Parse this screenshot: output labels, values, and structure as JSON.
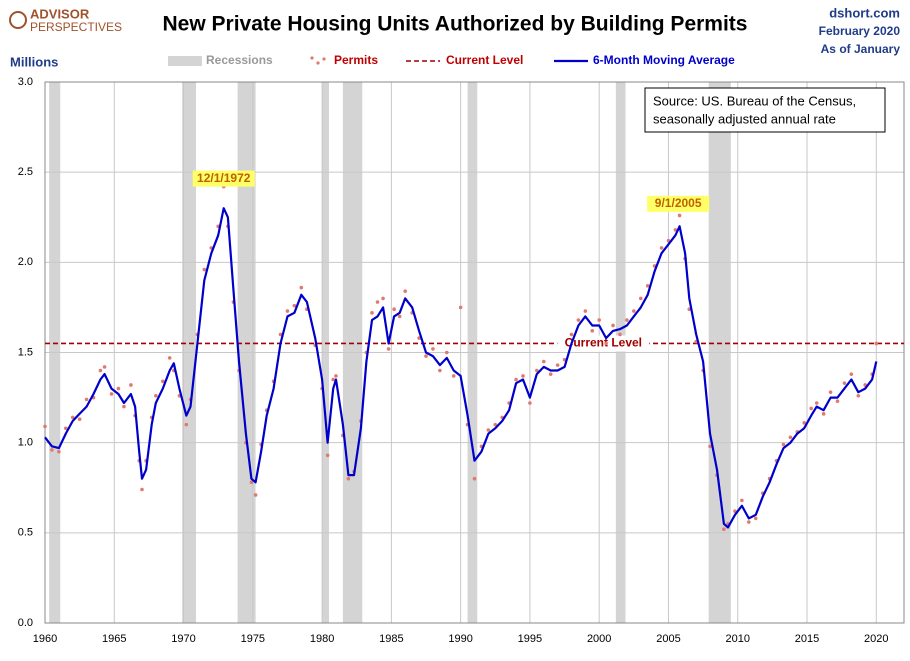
{
  "chart_data": {
    "type": "line",
    "title": "New Private Housing Units Authorized by Building Permits",
    "logo": [
      "ADVISOR",
      "PERSPECTIVES"
    ],
    "site": [
      "dshort.com",
      "February 2020",
      "As of January"
    ],
    "y_label": "Millions",
    "source": [
      "Source: US. Bureau of the Census,",
      "seasonally adjusted annual rate"
    ],
    "xlim": [
      1960,
      2022
    ],
    "xticks": [
      1960,
      1965,
      1970,
      1975,
      1980,
      1985,
      1990,
      1995,
      2000,
      2005,
      2010,
      2015,
      2020
    ],
    "ylim": [
      0,
      3
    ],
    "yticks": [
      {
        "value": 0,
        "label": "0.0"
      },
      0.5,
      {
        "value": 1,
        "label": "1.0"
      },
      1.5,
      {
        "value": 2,
        "label": "2.0"
      },
      2.5,
      {
        "value": 3,
        "label": "3.0"
      }
    ],
    "grid": true,
    "recessions": {
      "name": "Recessions",
      "color": "#d4d4d4",
      "spans": [
        [
          1960.3,
          1961.1
        ],
        [
          1969.9,
          1970.9
        ],
        [
          1973.9,
          1975.2
        ],
        [
          1980.0,
          1980.5
        ],
        [
          1981.5,
          1982.9
        ],
        [
          1990.5,
          1991.2
        ],
        [
          2001.2,
          2001.9
        ],
        [
          2007.9,
          2009.5
        ]
      ]
    },
    "current_level": {
      "name": "Current Level",
      "value": 1.55,
      "color": "#a00000",
      "label": "Current Level"
    },
    "annotations": [
      {
        "text": "12/1/1972",
        "x": 1972.9,
        "y": 2.42
      },
      {
        "text": "9/1/2005",
        "x": 2005.7,
        "y": 2.28
      }
    ],
    "x": [
      1960.0,
      1960.5,
      1961.0,
      1961.5,
      1962.0,
      1962.5,
      1963.0,
      1963.5,
      1964.0,
      1964.3,
      1964.8,
      1965.3,
      1965.7,
      1966.2,
      1966.5,
      1966.8,
      1967.0,
      1967.3,
      1967.7,
      1968.0,
      1968.5,
      1969.0,
      1969.3,
      1969.7,
      1970.2,
      1970.5,
      1971.0,
      1971.5,
      1972.0,
      1972.5,
      1972.9,
      1973.2,
      1973.6,
      1974.0,
      1974.5,
      1974.9,
      1975.2,
      1975.6,
      1976.0,
      1976.5,
      1977.0,
      1977.5,
      1978.0,
      1978.5,
      1978.9,
      1979.5,
      1980.0,
      1980.4,
      1980.8,
      1981.0,
      1981.5,
      1981.9,
      1982.3,
      1982.8,
      1983.2,
      1983.6,
      1984.0,
      1984.4,
      1984.8,
      1985.2,
      1985.6,
      1986.0,
      1986.5,
      1987.0,
      1987.5,
      1988.0,
      1988.5,
      1989.0,
      1989.5,
      1990.0,
      1990.5,
      1991.0,
      1991.5,
      1992.0,
      1992.5,
      1993.0,
      1993.5,
      1994.0,
      1994.5,
      1995.0,
      1995.5,
      1996.0,
      1996.5,
      1997.0,
      1997.5,
      1998.0,
      1998.5,
      1999.0,
      1999.5,
      2000.0,
      2000.5,
      2001.0,
      2001.5,
      2002.0,
      2002.5,
      2003.0,
      2003.5,
      2004.0,
      2004.5,
      2005.0,
      2005.5,
      2005.8,
      2006.2,
      2006.5,
      2007.0,
      2007.5,
      2008.0,
      2008.5,
      2009.0,
      2009.3,
      2009.8,
      2010.3,
      2010.8,
      2011.3,
      2011.8,
      2012.3,
      2012.8,
      2013.3,
      2013.8,
      2014.3,
      2014.8,
      2015.3,
      2015.7,
      2016.2,
      2016.7,
      2017.2,
      2017.7,
      2018.2,
      2018.7,
      2019.2,
      2019.7,
      2020.0
    ],
    "series": [
      {
        "name": "Permits",
        "color": "#e07a6e",
        "style": "dots",
        "values": [
          1.09,
          0.96,
          0.95,
          1.08,
          1.14,
          1.13,
          1.24,
          1.25,
          1.4,
          1.42,
          1.27,
          1.3,
          1.2,
          1.32,
          1.15,
          0.9,
          0.74,
          0.9,
          1.14,
          1.26,
          1.34,
          1.47,
          1.4,
          1.26,
          1.1,
          1.24,
          1.6,
          1.96,
          2.08,
          2.2,
          2.42,
          2.2,
          1.78,
          1.4,
          1.0,
          0.78,
          0.71,
          0.99,
          1.18,
          1.34,
          1.6,
          1.73,
          1.76,
          1.86,
          1.74,
          1.54,
          1.3,
          0.93,
          1.35,
          1.37,
          1.04,
          0.8,
          0.84,
          1.12,
          1.5,
          1.72,
          1.78,
          1.8,
          1.52,
          1.74,
          1.7,
          1.84,
          1.72,
          1.58,
          1.48,
          1.52,
          1.4,
          1.5,
          1.37,
          1.75,
          1.1,
          0.8,
          0.98,
          1.07,
          1.1,
          1.14,
          1.22,
          1.35,
          1.37,
          1.22,
          1.4,
          1.45,
          1.38,
          1.43,
          1.46,
          1.6,
          1.68,
          1.73,
          1.62,
          1.68,
          1.55,
          1.65,
          1.6,
          1.68,
          1.73,
          1.8,
          1.87,
          1.98,
          2.08,
          2.12,
          2.18,
          2.26,
          2.02,
          1.74,
          1.56,
          1.4,
          0.98,
          0.82,
          0.52,
          0.55,
          0.62,
          0.68,
          0.56,
          0.58,
          0.72,
          0.8,
          0.9,
          0.99,
          1.03,
          1.06,
          1.11,
          1.19,
          1.22,
          1.16,
          1.28,
          1.23,
          1.33,
          1.38,
          1.26,
          1.32,
          1.38,
          1.55
        ]
      },
      {
        "name": "6-Month Moving Average",
        "color": "#0000cc",
        "style": "line",
        "values": [
          1.03,
          0.98,
          0.97,
          1.05,
          1.12,
          1.16,
          1.2,
          1.27,
          1.35,
          1.38,
          1.3,
          1.27,
          1.22,
          1.27,
          1.2,
          0.95,
          0.8,
          0.85,
          1.1,
          1.22,
          1.3,
          1.4,
          1.44,
          1.3,
          1.15,
          1.2,
          1.55,
          1.9,
          2.05,
          2.15,
          2.3,
          2.25,
          1.85,
          1.45,
          1.05,
          0.8,
          0.78,
          0.95,
          1.15,
          1.3,
          1.55,
          1.7,
          1.72,
          1.82,
          1.78,
          1.58,
          1.35,
          1.0,
          1.3,
          1.35,
          1.1,
          0.82,
          0.82,
          1.08,
          1.45,
          1.68,
          1.7,
          1.75,
          1.55,
          1.7,
          1.72,
          1.8,
          1.75,
          1.62,
          1.5,
          1.48,
          1.43,
          1.47,
          1.4,
          1.37,
          1.15,
          0.9,
          0.95,
          1.05,
          1.08,
          1.12,
          1.18,
          1.33,
          1.35,
          1.25,
          1.38,
          1.42,
          1.4,
          1.4,
          1.42,
          1.55,
          1.65,
          1.7,
          1.65,
          1.65,
          1.58,
          1.62,
          1.63,
          1.65,
          1.7,
          1.75,
          1.82,
          1.95,
          2.05,
          2.1,
          2.15,
          2.2,
          2.05,
          1.8,
          1.6,
          1.45,
          1.05,
          0.85,
          0.55,
          0.53,
          0.6,
          0.65,
          0.58,
          0.6,
          0.7,
          0.78,
          0.88,
          0.97,
          1.0,
          1.05,
          1.08,
          1.15,
          1.2,
          1.18,
          1.25,
          1.25,
          1.3,
          1.35,
          1.28,
          1.3,
          1.35,
          1.45
        ]
      }
    ]
  }
}
